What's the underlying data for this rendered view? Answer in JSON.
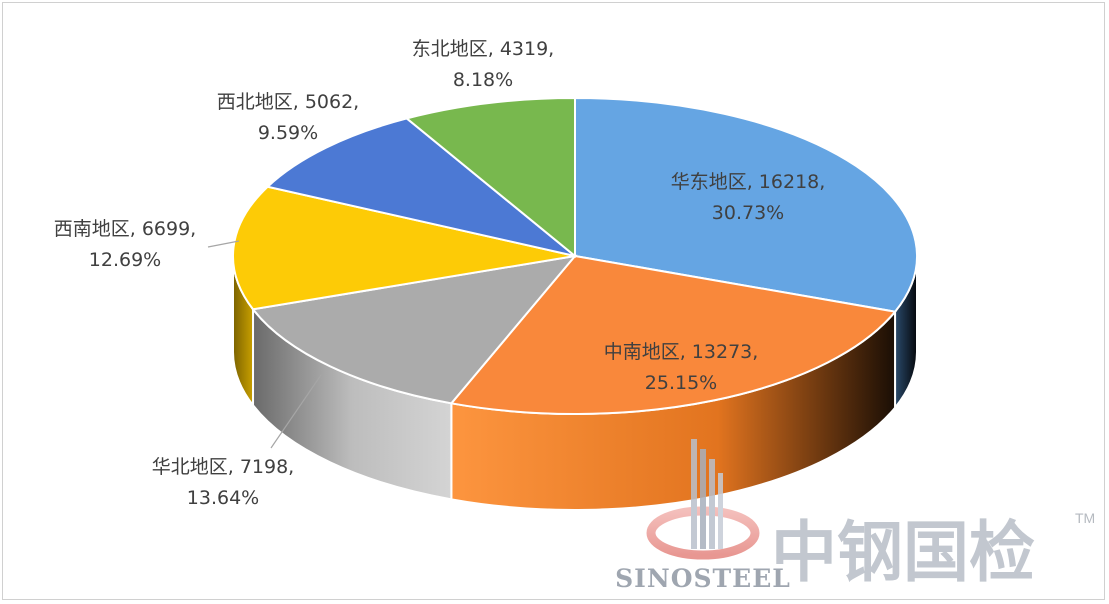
{
  "chart_data": {
    "type": "pie",
    "style": "3d",
    "slices": [
      {
        "name": "华东地区",
        "value": 16218,
        "percent": "30.73%",
        "label": "华东地区, 16218,",
        "percent_label": "30.73%",
        "color": "#65a5e3",
        "side": "#2e5f8e"
      },
      {
        "name": "中南地区",
        "value": 13273,
        "percent": "25.15%",
        "label": "中南地区, 13273,",
        "percent_label": "25.15%",
        "color": "#f9883b",
        "side": "#e06a1c"
      },
      {
        "name": "华北地区",
        "value": 7198,
        "percent": "13.64%",
        "label": "华北地区, 7198,",
        "percent_label": "13.64%",
        "color": "#ababab",
        "side": "#8a8a8a"
      },
      {
        "name": "西南地区",
        "value": 6699,
        "percent": "12.69%",
        "label": "西南地区, 6699,",
        "percent_label": "12.69%",
        "color": "#fdcb06",
        "side": "#c49b00"
      },
      {
        "name": "西北地区",
        "value": 5062,
        "percent": "9.59%",
        "label": "西北地区, 5062,",
        "percent_label": "9.59%",
        "color": "#4c79d4",
        "side": "#2f4f93"
      },
      {
        "name": "东北地区",
        "value": 4319,
        "percent": "8.18%",
        "label": "东北地区, 4319,",
        "percent_label": "8.18%",
        "color": "#78b84e",
        "side": "#4d7f2d"
      }
    ]
  },
  "watermark": {
    "chinese": "中钢国检",
    "english": "SINOSTEEL",
    "tm": "TM"
  }
}
